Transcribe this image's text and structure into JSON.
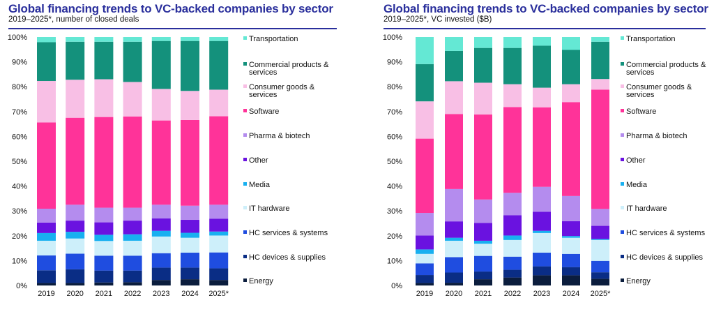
{
  "chart_data": [
    {
      "type": "bar",
      "stacked": true,
      "title": "Global financing trends to VC-backed companies by sector",
      "subtitle": "2019–2025*, number of closed deals",
      "categories": [
        "2019",
        "2020",
        "2021",
        "2022",
        "2023",
        "2024",
        "2025*"
      ],
      "yticks": [
        "0%",
        "10%",
        "20%",
        "30%",
        "40%",
        "50%",
        "60%",
        "70%",
        "80%",
        "90%",
        "100%"
      ],
      "ylim": [
        0,
        100
      ],
      "grid": false,
      "legend_position": "right",
      "series": [
        {
          "name": "Energy",
          "color": "#0b1d3d",
          "values": [
            1.0,
            1.0,
            1.2,
            1.3,
            2.2,
            2.5,
            2.2
          ]
        },
        {
          "name": "HC devices & supplies",
          "color": "#0a2d85",
          "values": [
            5.1,
            5.5,
            4.8,
            4.7,
            5.0,
            4.7,
            4.7
          ]
        },
        {
          "name": "HC services & systems",
          "color": "#1f4de0",
          "values": [
            6.0,
            6.3,
            6.0,
            6.0,
            5.8,
            6.0,
            6.4
          ]
        },
        {
          "name": "IT hardware",
          "color": "#cdeffa",
          "values": [
            5.9,
            6.1,
            5.9,
            6.0,
            6.7,
            6.0,
            6.8
          ]
        },
        {
          "name": "Media",
          "color": "#18b0f0",
          "values": [
            3.1,
            2.7,
            2.5,
            2.6,
            2.3,
            2.0,
            1.6
          ]
        },
        {
          "name": "Other",
          "color": "#6a12e0",
          "values": [
            4.2,
            4.5,
            5.0,
            5.5,
            5.0,
            5.2,
            5.2
          ]
        },
        {
          "name": "Pharma & biotech",
          "color": "#b48cee",
          "values": [
            5.6,
            6.4,
            5.9,
            5.2,
            5.5,
            5.7,
            5.6
          ]
        },
        {
          "name": "Software",
          "color": "#ff3399",
          "values": [
            34.7,
            35.0,
            36.5,
            36.7,
            33.9,
            34.5,
            35.6
          ]
        },
        {
          "name": "Consumer goods & services",
          "color": "#f8bfe5",
          "values": [
            16.7,
            15.3,
            15.2,
            13.9,
            12.7,
            11.7,
            10.7
          ]
        },
        {
          "name": "Commercial products & services",
          "color": "#14917c",
          "values": [
            15.6,
            15.3,
            15.1,
            16.2,
            19.3,
            20.1,
            19.6
          ]
        },
        {
          "name": "Transportation",
          "color": "#64e8d4",
          "values": [
            2.1,
            1.9,
            1.9,
            1.9,
            1.6,
            1.6,
            1.6
          ]
        }
      ]
    },
    {
      "type": "bar",
      "stacked": true,
      "title": "Global financing trends to VC-backed companies by sector",
      "subtitle": "2019–2025*, VC invested ($B)",
      "categories": [
        "2019",
        "2020",
        "2021",
        "2022",
        "2023",
        "2024",
        "2025*"
      ],
      "yticks": [
        "0%",
        "10%",
        "20%",
        "30%",
        "40%",
        "50%",
        "60%",
        "70%",
        "80%",
        "90%",
        "100%"
      ],
      "ylim": [
        0,
        100
      ],
      "grid": false,
      "legend_position": "right",
      "series": [
        {
          "name": "Energy",
          "color": "#0b1d3d",
          "values": [
            1.0,
            1.1,
            2.5,
            3.2,
            4.1,
            4.1,
            2.7
          ]
        },
        {
          "name": "HC devices & supplies",
          "color": "#0a2d85",
          "values": [
            3.2,
            4.1,
            3.1,
            3.1,
            3.6,
            3.3,
            2.6
          ]
        },
        {
          "name": "HC services & systems",
          "color": "#1f4de0",
          "values": [
            4.7,
            6.2,
            6.3,
            5.3,
            5.5,
            5.3,
            4.6
          ]
        },
        {
          "name": "IT hardware",
          "color": "#cdeffa",
          "values": [
            3.8,
            6.6,
            4.9,
            6.7,
            7.9,
            6.5,
            8.4
          ]
        },
        {
          "name": "Media",
          "color": "#18b0f0",
          "values": [
            1.8,
            1.2,
            1.2,
            1.8,
            0.9,
            0.7,
            0.4
          ]
        },
        {
          "name": "Other",
          "color": "#6a12e0",
          "values": [
            5.6,
            6.6,
            7.2,
            8.2,
            7.7,
            6.0,
            5.3
          ]
        },
        {
          "name": "Pharma & biotech",
          "color": "#b48cee",
          "values": [
            9.1,
            13.0,
            9.4,
            9.0,
            10.0,
            10.1,
            6.8
          ]
        },
        {
          "name": "Software",
          "color": "#ff3399",
          "values": [
            29.9,
            30.2,
            34.2,
            34.5,
            32.0,
            37.8,
            48.0
          ]
        },
        {
          "name": "Consumer goods & services",
          "color": "#f8bfe5",
          "values": [
            15.0,
            13.2,
            12.8,
            9.2,
            7.9,
            7.2,
            4.3
          ]
        },
        {
          "name": "Commercial products & services",
          "color": "#14917c",
          "values": [
            15.0,
            12.2,
            14.0,
            14.6,
            16.9,
            13.8,
            15.0
          ]
        },
        {
          "name": "Transportation",
          "color": "#64e8d4",
          "values": [
            10.9,
            5.6,
            4.4,
            4.4,
            3.5,
            5.2,
            1.9
          ]
        }
      ]
    }
  ],
  "legend_lines": {
    "Commercial products & services": [
      "Commercial products &",
      "services"
    ],
    "Consumer goods & services": [
      "Consumer goods &",
      "services"
    ]
  }
}
